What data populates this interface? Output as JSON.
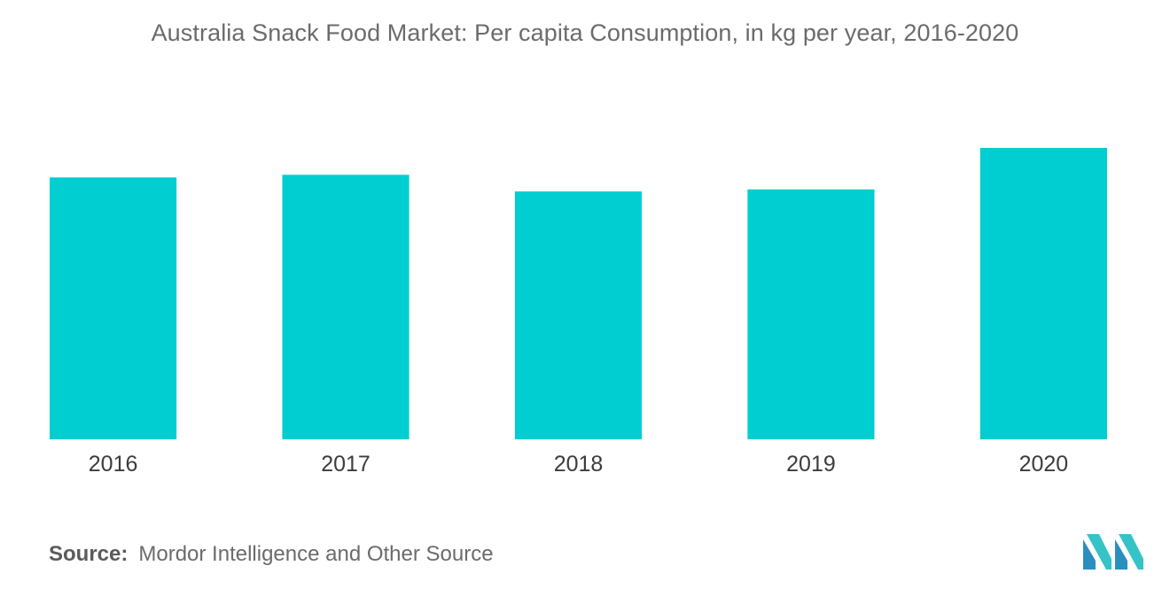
{
  "chart_data": {
    "type": "bar",
    "title": "Australia Snack Food Market: Per capita Consumption, in kg per year, 2016-2020",
    "categories": [
      "2016",
      "2017",
      "2018",
      "2019",
      "2020"
    ],
    "values": [
      8.96,
      9.05,
      8.48,
      8.55,
      9.97
    ],
    "ylim": [
      0,
      12
    ],
    "xlabel": "",
    "ylabel": "",
    "grid": false,
    "legend": "none"
  },
  "colors": {
    "bar": "#00CED1",
    "title": "#6b6b6b",
    "tick": "#3c3c3c"
  },
  "source": {
    "label": "Source:",
    "text": "Mordor Intelligence and Other Source"
  },
  "logo": {
    "icon": "mordor-intelligence-logo-icon"
  }
}
